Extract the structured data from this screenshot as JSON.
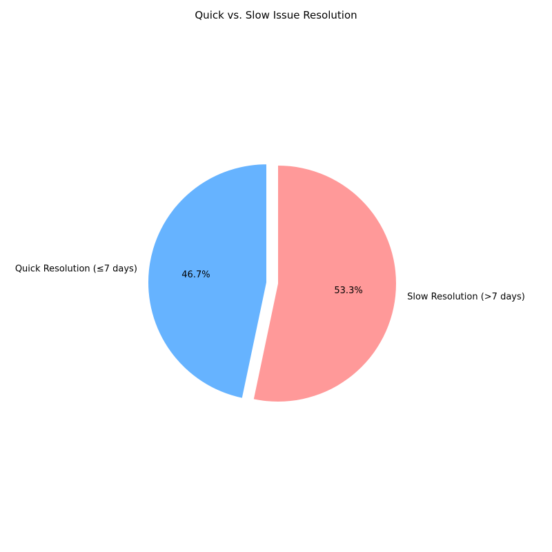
{
  "chart_data": {
    "type": "pie",
    "title": "Quick vs. Slow Issue Resolution",
    "categories": [
      "Quick Resolution (≤7 days)",
      "Slow Resolution (>7 days)"
    ],
    "values": [
      46.7,
      53.3
    ],
    "value_labels": [
      "46.7%",
      "53.3%"
    ],
    "colors": [
      "#66b3ff",
      "#ff9999"
    ],
    "explode": [
      0.1,
      0
    ],
    "start_angle": 90,
    "direction": "counterclockwise",
    "legend": false
  }
}
